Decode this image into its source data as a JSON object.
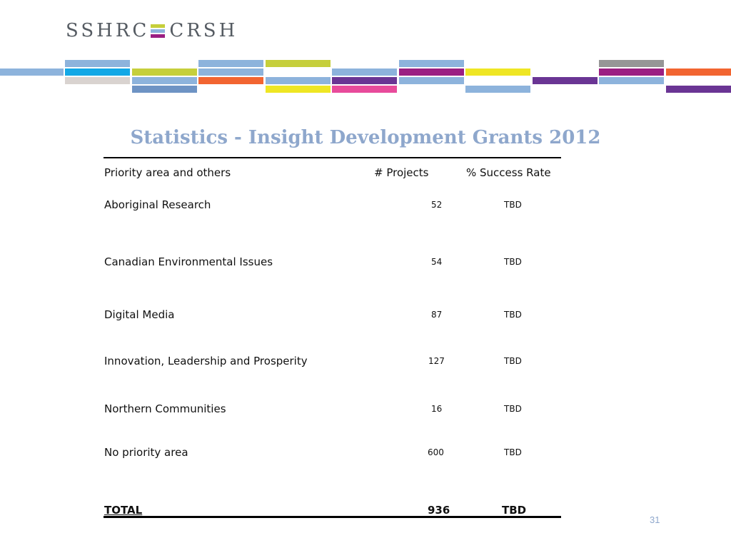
{
  "logo": {
    "left_text": "SSHRC",
    "right_text": "CRSH",
    "mark_colors": [
      "#c6cf3b",
      "#8db3dc",
      "#9b1f82"
    ]
  },
  "band_colors": [
    "#8db3dc",
    "#13a8e6",
    "#c6cf3b",
    "#d9d3d0",
    "#6e93c4",
    "#f26531",
    "#efe624",
    "#9b1f82",
    "#e84b9b",
    "#6a3594",
    "#969696"
  ],
  "title": "Statistics - Insight Development Grants 2012",
  "table": {
    "headers": {
      "area": "Priority area and others",
      "projects": "# Projects",
      "rate": "% Success Rate"
    },
    "rows": [
      {
        "area": "Aboriginal Research",
        "projects": "52",
        "rate": "TBD"
      },
      {
        "area": "Canadian Environmental Issues",
        "projects": "54",
        "rate": "TBD"
      },
      {
        "area": "Digital Media",
        "projects": "87",
        "rate": "TBD"
      },
      {
        "area": "Innovation, Leadership and Prosperity",
        "projects": "127",
        "rate": "TBD"
      },
      {
        "area": "Northern Communities",
        "projects": "16",
        "rate": "TBD"
      },
      {
        "area": "No priority area",
        "projects": "600",
        "rate": "TBD"
      }
    ],
    "total": {
      "label": "TOTAL",
      "projects": "936",
      "rate": "TBD"
    }
  },
  "page_number": "31"
}
